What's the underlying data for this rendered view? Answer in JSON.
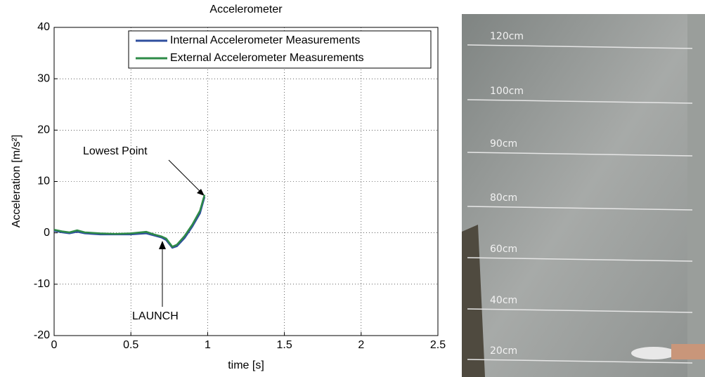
{
  "chart_data": {
    "type": "line",
    "title": "Accelerometer",
    "x_label": "time [s]",
    "y_label": "Acceleration [m/s²]",
    "x": [
      0,
      0.05,
      0.1,
      0.15,
      0.2,
      0.3,
      0.4,
      0.5,
      0.6,
      0.65,
      0.7,
      0.73,
      0.77,
      0.8,
      0.85,
      0.9,
      0.95,
      0.98
    ],
    "series": [
      {
        "name": "Internal Accelerometer Measurements",
        "color": "#2f4f9e",
        "values": [
          0.4,
          0.1,
          -0.1,
          0.2,
          -0.1,
          -0.3,
          -0.3,
          -0.3,
          -0.1,
          -0.5,
          -0.9,
          -1.4,
          -2.9,
          -2.6,
          -1.0,
          1.2,
          3.8,
          7.0
        ]
      },
      {
        "name": "External Accelerometer Measurements",
        "color": "#2e8b47",
        "values": [
          0.6,
          0.3,
          0.1,
          0.5,
          0.1,
          -0.1,
          -0.2,
          -0.1,
          0.2,
          -0.3,
          -0.7,
          -1.1,
          -2.7,
          -2.3,
          -0.6,
          1.6,
          4.3,
          7.4
        ]
      }
    ],
    "xlim": [
      0,
      2.5
    ],
    "xticks": [
      0,
      0.5,
      1,
      1.5,
      2,
      2.5
    ],
    "ylim": [
      -20,
      40
    ],
    "yticks": [
      -20,
      -10,
      0,
      10,
      20,
      30,
      40
    ],
    "grid": true,
    "legend": "upper right",
    "annotations": [
      "Lowest Point",
      "LAUNCH"
    ]
  },
  "photo_labels": [
    "120cm",
    "100cm",
    "90cm",
    "80cm",
    "60cm",
    "40cm",
    "20cm"
  ]
}
